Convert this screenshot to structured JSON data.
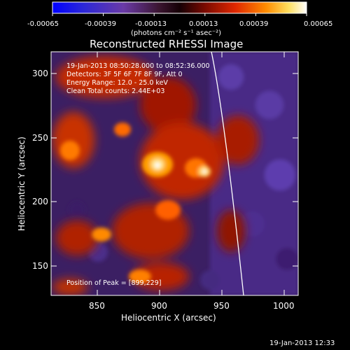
{
  "colorbar": {
    "tick_labels": [
      "-0.00065",
      "-0.00039",
      "-0.00013",
      "0.00013",
      "0.00039",
      "0.00065"
    ],
    "units_text": "(photons cm⁻² s⁻¹ asec⁻²)",
    "colors": [
      "#0000ff",
      "#3a2bd6",
      "#7b3f9a",
      "#2a0a12",
      "#8b0000",
      "#ff3b00",
      "#ffa000",
      "#ffff90",
      "#ffffff"
    ]
  },
  "plot": {
    "title": "Reconstructed RHESSI Image",
    "xlabel": "Heliocentric X (arcsec)",
    "ylabel": "Heliocentric Y (arcsec)",
    "xticks": [
      "850",
      "900",
      "950",
      "1000"
    ],
    "yticks": [
      "150",
      "200",
      "250",
      "300"
    ],
    "info_lines": [
      "19-Jan-2013 08:50:28.000 to 08:52:36.000",
      "Detectors: 3F 5F 6F 7F 8F 9F, Att 0",
      "Energy Range: 12.0 - 25.0 keV",
      "Clean      Total counts: 2.44E+03"
    ],
    "peak_text": "Position of Peak = [899,229]"
  },
  "footer": {
    "timestamp": "19-Jan-2013 12:33"
  }
}
